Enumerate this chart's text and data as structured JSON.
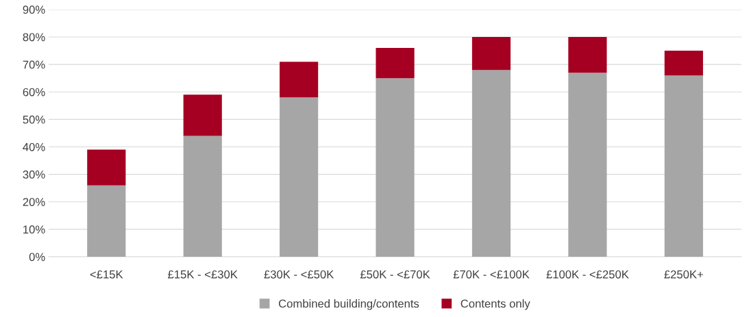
{
  "chart_data": {
    "type": "bar",
    "stacked": true,
    "categories": [
      "<£15K",
      "£15K - <£30K",
      "£30K - <£50K",
      "£50K - <£70K",
      "£70K - <£100K",
      "£100K - <£250K",
      "£250K+"
    ],
    "series": [
      {
        "name": "Combined building/contents",
        "color": "#a6a6a6",
        "values": [
          26,
          44,
          58,
          65,
          68,
          67,
          66
        ]
      },
      {
        "name": "Contents only",
        "color": "#a50021",
        "values": [
          13,
          15,
          13,
          11,
          12,
          13,
          9
        ]
      }
    ],
    "ylim": [
      0,
      90
    ],
    "yticks": [
      {
        "value": 0,
        "label": "0%"
      },
      {
        "value": 10,
        "label": "10%"
      },
      {
        "value": 20,
        "label": "20%"
      },
      {
        "value": 30,
        "label": "30%"
      },
      {
        "value": 40,
        "label": "40%"
      },
      {
        "value": 50,
        "label": "50%"
      },
      {
        "value": 60,
        "label": "60%"
      },
      {
        "value": 70,
        "label": "70%"
      },
      {
        "value": 80,
        "label": "80%"
      },
      {
        "value": 90,
        "label": "90%"
      }
    ],
    "grid": "y",
    "legend": "bottom"
  }
}
